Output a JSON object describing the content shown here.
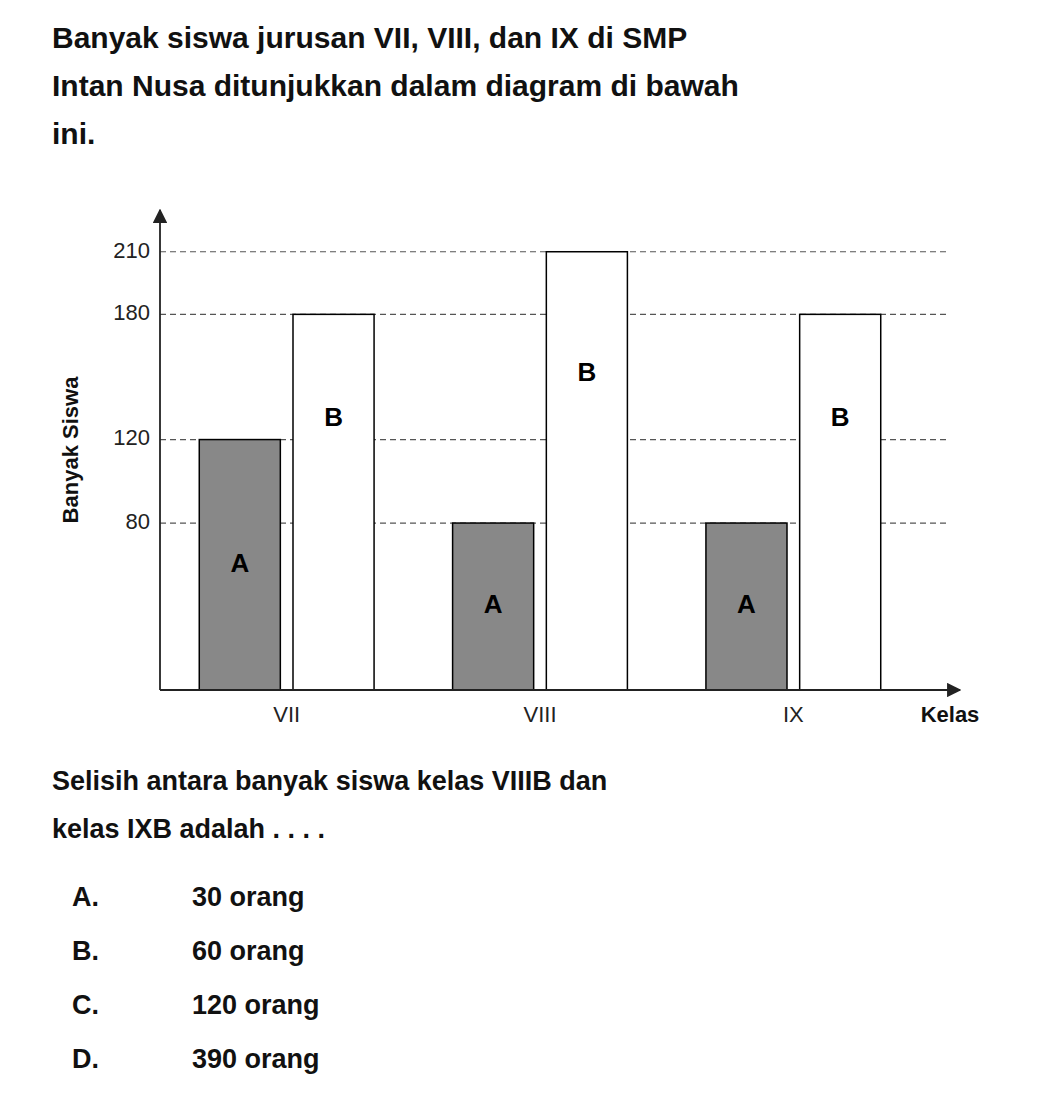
{
  "chart_data": {
    "type": "bar",
    "title": [
      "Banyak siswa jurusan VII, VIII, dan IX di SMP",
      "Intan Nusa ditunjukkan dalam diagram di bawah",
      "ini."
    ],
    "y_label": "Banyak Siswa",
    "x_label": "Kelas",
    "categories": [
      "VII",
      "VIII",
      "IX"
    ],
    "series": [
      {
        "name": "A",
        "color": "#888888",
        "values": [
          120,
          80,
          80
        ]
      },
      {
        "name": "B",
        "color": "#ffffff",
        "values": [
          180,
          210,
          180
        ]
      }
    ],
    "ylim": [
      0,
      230
    ],
    "yticks": [
      80,
      120,
      180,
      210
    ],
    "grid": true,
    "annotations": [
      "Selisih antara banyak siswa kelas VIIIB dan",
      "kelas IXB adalah . . . .",
      "A.",
      "30 orang",
      "B.",
      "60 orang",
      "C.",
      "120 orang",
      "D.",
      "390 orang"
    ]
  }
}
